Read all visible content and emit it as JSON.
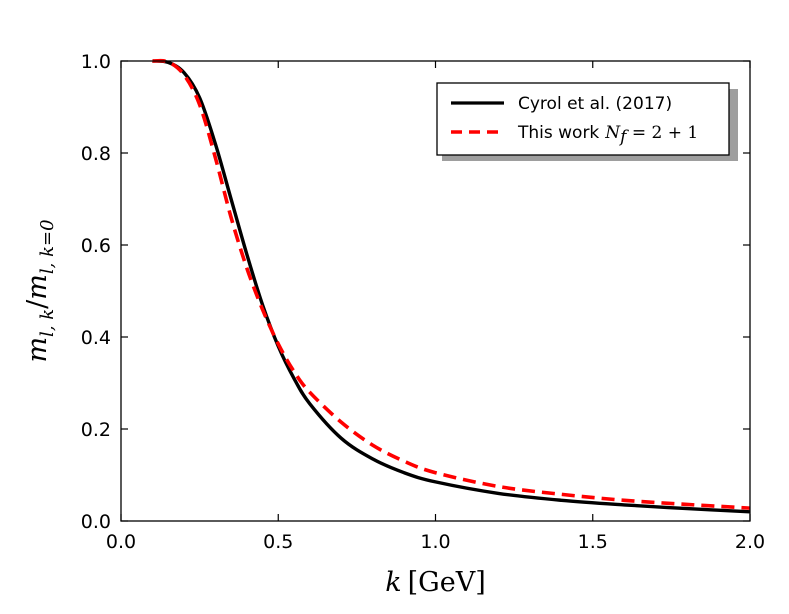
{
  "chart_data": {
    "type": "line",
    "title": "",
    "xlabel": "k [GeV]",
    "xlabel_var": "k",
    "xlabel_unit": "[GeV]",
    "ylabel": "m_{l,k}/m_{l,k=0}",
    "ylabel_main": "m",
    "ylabel_sub1": "l, k",
    "ylabel_slash": "/",
    "ylabel_main2": "m",
    "ylabel_sub2": "l, k=0",
    "xlim": [
      0.0,
      2.0
    ],
    "ylim": [
      0.0,
      1.0
    ],
    "x_ticks": [
      0.0,
      0.5,
      1.0,
      1.5,
      2.0
    ],
    "x_tick_labels": [
      "0.0",
      "0.5",
      "1.0",
      "1.5",
      "2.0"
    ],
    "y_ticks": [
      0.0,
      0.2,
      0.4,
      0.6,
      0.8,
      1.0
    ],
    "y_tick_labels": [
      "0.0",
      "0.2",
      "0.4",
      "0.6",
      "0.8",
      "1.0"
    ],
    "grid": false,
    "legend_position": "top-right",
    "series": [
      {
        "name": "Cyrol et al. (2017)",
        "color": "#000000",
        "style": "solid",
        "x": [
          0.1,
          0.15,
          0.2,
          0.25,
          0.3,
          0.35,
          0.4,
          0.45,
          0.5,
          0.55,
          0.6,
          0.7,
          0.8,
          0.9,
          1.0,
          1.2,
          1.4,
          1.6,
          1.8,
          2.0
        ],
        "y": [
          1.0,
          0.997,
          0.975,
          0.92,
          0.82,
          0.7,
          0.58,
          0.47,
          0.38,
          0.31,
          0.255,
          0.18,
          0.135,
          0.105,
          0.085,
          0.06,
          0.045,
          0.035,
          0.027,
          0.02
        ]
      },
      {
        "name": "This work N_f = 2+1",
        "label_text": "This work",
        "label_math": "N",
        "label_math_sub": "f",
        "label_math_rest": " = 2 + 1",
        "color": "#ff0000",
        "style": "dashed",
        "x": [
          0.1,
          0.15,
          0.2,
          0.25,
          0.3,
          0.35,
          0.4,
          0.45,
          0.5,
          0.55,
          0.6,
          0.7,
          0.8,
          0.9,
          1.0,
          1.2,
          1.4,
          1.6,
          1.8,
          2.0
        ],
        "y": [
          1.0,
          0.998,
          0.97,
          0.905,
          0.79,
          0.66,
          0.55,
          0.46,
          0.385,
          0.325,
          0.28,
          0.215,
          0.165,
          0.13,
          0.105,
          0.075,
          0.058,
          0.045,
          0.036,
          0.028
        ]
      }
    ]
  }
}
